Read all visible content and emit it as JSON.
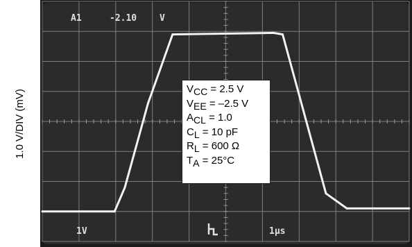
{
  "y_axis_label": "1.0 V/DIV (mV)",
  "screen": {
    "top_left": "A1",
    "top_value": "-2.10",
    "top_unit": "V",
    "bottom_left": "1V",
    "bottom_right": "1µs"
  },
  "conditions": [
    {
      "main": "V",
      "sub": "CC",
      "rest": " = 2.5 V"
    },
    {
      "main": "V",
      "sub": "EE",
      "rest": " = –2.5 V"
    },
    {
      "main": "A",
      "sub": "CL",
      "rest": " = 1.0"
    },
    {
      "main": "C",
      "sub": "L",
      "rest": " = 10 pF"
    },
    {
      "main": "R",
      "sub": "L",
      "rest": " = 600 Ω"
    },
    {
      "main": "T",
      "sub": "A",
      "rest": " = 25°C"
    }
  ],
  "colors": {
    "screen": "#2b2b2b",
    "grid": "#9a9a9a",
    "trace": "#f2f2f2",
    "text": "#e0e0e0"
  },
  "chart_data": {
    "type": "line",
    "grid": {
      "x_divisions": 10,
      "y_divisions": 8
    },
    "xlim": [
      0,
      10
    ],
    "ylim": [
      -4,
      4
    ],
    "series": [
      {
        "x": [
          0,
          1.97,
          2.25,
          2.88,
          3.55,
          6.3,
          6.55,
          7.73,
          8.3,
          10
        ],
        "y": [
          -3.0,
          -3.0,
          -2.2,
          0.6,
          2.9,
          2.95,
          2.9,
          -2.4,
          -2.9,
          -2.9
        ]
      }
    ]
  }
}
